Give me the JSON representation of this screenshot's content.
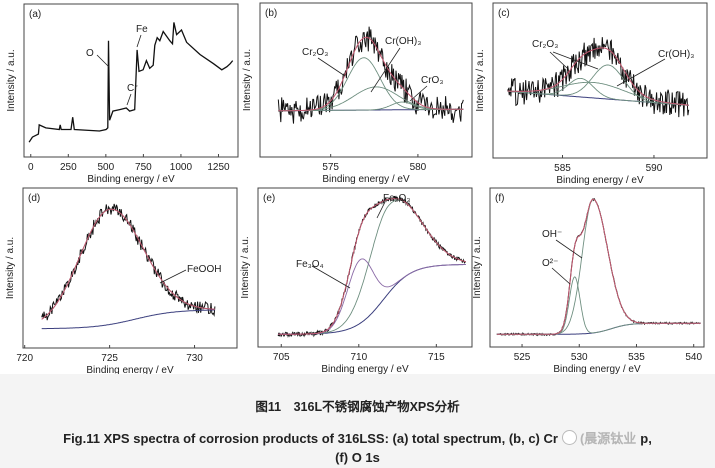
{
  "figure": {
    "caption_cn": "图11　316L不锈钢腐蚀产物XPS分析",
    "caption_en_line1": "Fig.11   XPS spectra of corrosion products of 316LSS: (a) total spectrum, (b, c) Cr",
    "caption_en_line1_end": "p,",
    "caption_en_line2": "(f) O 1s",
    "watermark": "(晨源钛业"
  },
  "colors": {
    "data": "#111111",
    "envelope": "#c2566e",
    "component": "#6f8f80",
    "baseline": "#3b3f7e",
    "fe3o4": "#8a6aa6"
  },
  "chart_data": [
    {
      "panel": "(a)",
      "type": "line",
      "xlabel": "Binding energy / eV",
      "ylabel": "Intensity / a.u.",
      "xlim": [
        -45,
        1380
      ],
      "ylim": [
        0,
        100
      ],
      "xticks": [
        0,
        250,
        500,
        750,
        1000,
        1250
      ],
      "points": [
        [
          -11,
          9.7
        ],
        [
          11,
          13
        ],
        [
          51,
          15
        ],
        [
          56,
          21
        ],
        [
          100,
          19
        ],
        [
          190,
          18
        ],
        [
          196,
          21
        ],
        [
          203,
          18
        ],
        [
          268,
          18
        ],
        [
          279,
          26
        ],
        [
          290,
          18
        ],
        [
          458,
          17
        ],
        [
          502,
          18
        ],
        [
          513,
          19
        ],
        [
          518,
          76
        ],
        [
          525,
          24
        ],
        [
          547,
          30
        ],
        [
          592,
          31
        ],
        [
          636,
          32
        ],
        [
          658,
          30
        ],
        [
          692,
          31
        ],
        [
          708,
          70
        ],
        [
          721,
          56
        ],
        [
          748,
          57
        ],
        [
          770,
          63
        ],
        [
          792,
          58
        ],
        [
          815,
          60
        ],
        [
          826,
          73
        ],
        [
          842,
          78
        ],
        [
          859,
          76
        ],
        [
          882,
          82
        ],
        [
          926,
          76
        ],
        [
          944,
          74
        ],
        [
          953,
          88
        ],
        [
          971,
          80
        ],
        [
          1004,
          83
        ],
        [
          1038,
          75
        ],
        [
          1127,
          67
        ],
        [
          1217,
          61
        ],
        [
          1272,
          57
        ],
        [
          1306,
          59
        ],
        [
          1328,
          61
        ],
        [
          1345,
          63
        ]
      ],
      "annotations": [
        "O",
        "Fe",
        "Cr"
      ]
    },
    {
      "panel": "(b)",
      "type": "line",
      "xlabel": "Binding energy / eV",
      "ylabel": "Intensity / a.u.",
      "xlim": [
        570.95,
        583.1
      ],
      "ylim": [
        0,
        1
      ],
      "xticks": [
        575,
        580
      ],
      "data_range": [
        572.0,
        582.6
      ],
      "baseline": {
        "type": "linear",
        "left": 0.3,
        "right": 0.31
      },
      "components": [
        {
          "name": "Cr₂O₃",
          "center": 576.9,
          "height": 0.34,
          "fwhm_left": 2.2,
          "fwhm_right": 2.2
        },
        {
          "name": "Cr(OH)₃",
          "center": 577.6,
          "height": 0.15,
          "fwhm_left": 3.0,
          "fwhm_right": 3.0
        },
        {
          "name": "CrO₃",
          "center": 579.1,
          "height": 0.05,
          "fwhm_left": 1.5,
          "fwhm_right": 1.5
        }
      ],
      "annotations": [
        "Cr₂O₃",
        "Cr(OH)₃",
        "CrO₃"
      ]
    },
    {
      "panel": "(c)",
      "type": "line",
      "xlabel": "Binding energy / eV",
      "ylabel": "Intensity / a.u.",
      "xlim": [
        581.2,
        592.9
      ],
      "ylim": [
        0,
        1
      ],
      "xticks": [
        585,
        590
      ],
      "data_range": [
        582.0,
        591.9
      ],
      "baseline": {
        "type": "linear",
        "left": 0.43,
        "right": 0.34
      },
      "components": [
        {
          "name": "Cr₂O₃",
          "center": 586.0,
          "height": 0.12,
          "fwhm_left": 1.6,
          "fwhm_right": 1.6
        },
        {
          "name": "Cr₂O₃",
          "center": 587.5,
          "height": 0.22,
          "fwhm_left": 2.0,
          "fwhm_right": 2.0
        },
        {
          "name": "Cr(OH)₃",
          "center": 586.7,
          "height": 0.1,
          "fwhm_left": 4.0,
          "fwhm_right": 4.0
        }
      ],
      "annotations": [
        "Cr₂O₃",
        "Cr(OH)₃"
      ]
    },
    {
      "panel": "(d)",
      "type": "line",
      "xlabel": "Binding energy / eV",
      "ylabel": "Intensity / a.u.",
      "xlim": [
        719.9,
        732.5
      ],
      "ylim": [
        0,
        1
      ],
      "xticks": [
        720,
        725,
        730
      ],
      "data_range": [
        721.0,
        731.2
      ],
      "baseline": {
        "type": "step",
        "left": 0.12,
        "right": 0.24,
        "center": 726.5,
        "width": 1.2
      },
      "components": [
        {
          "name": "FeOOH",
          "center": 725.0,
          "height": 0.72,
          "fwhm_left": 4.2,
          "fwhm_right": 4.6
        }
      ],
      "annotations": [
        "FeOOH"
      ]
    },
    {
      "panel": "(e)",
      "type": "line",
      "xlabel": "Binding energy / eV",
      "ylabel": "Intensity / a.u.",
      "xlim": [
        703.5,
        717.3
      ],
      "ylim": [
        0,
        1
      ],
      "xticks": [
        705,
        710,
        715
      ],
      "data_range": [
        704.8,
        716.9
      ],
      "baseline": {
        "type": "step",
        "left": 0.08,
        "right": 0.52,
        "center": 711.6,
        "width": 0.9
      },
      "components": [
        {
          "name": "Fe₂O₃",
          "center": 711.9,
          "height": 0.55,
          "fwhm_left": 3.0,
          "fwhm_right": 4.5
        },
        {
          "name": "Fe₃O₄",
          "center": 710.1,
          "height": 0.4,
          "fwhm_left": 2.0,
          "fwhm_right": 2.0
        }
      ],
      "annotations": [
        "Fe₂O₃",
        "Fe₃O₄"
      ]
    },
    {
      "panel": "(f)",
      "type": "line",
      "xlabel": "Binding energy / eV",
      "ylabel": "Intensity / a.u.",
      "xlim": [
        522.2,
        540.9
      ],
      "ylim": [
        0,
        1
      ],
      "xticks": [
        525,
        530,
        535,
        540
      ],
      "data_range": [
        522.8,
        540.6
      ],
      "baseline": {
        "type": "step",
        "left": 0.08,
        "right": 0.15,
        "center": 532.8,
        "width": 0.8
      },
      "components": [
        {
          "name": "OH⁻",
          "center": 531.2,
          "height": 0.84,
          "fwhm_left": 2.2,
          "fwhm_right": 3.0
        },
        {
          "name": "O²⁻",
          "center": 529.6,
          "height": 0.36,
          "fwhm_left": 1.1,
          "fwhm_right": 1.1
        }
      ],
      "annotations": [
        "OH⁻",
        "O²⁻"
      ]
    }
  ]
}
